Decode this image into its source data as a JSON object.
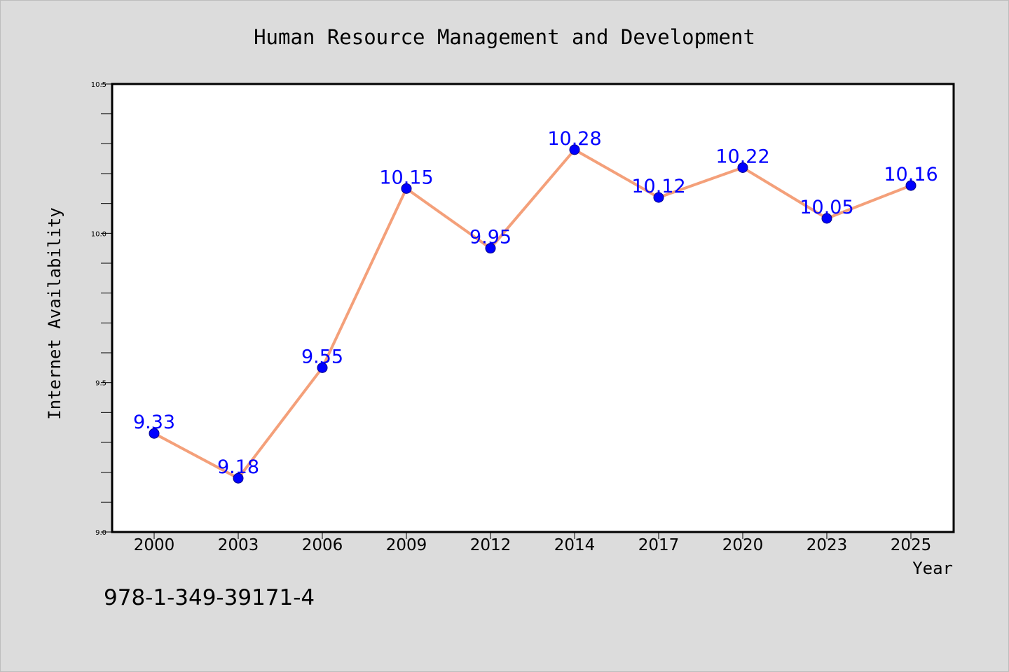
{
  "chart_data": {
    "type": "line",
    "title": "Human Resource Management and Development",
    "xlabel": "Year",
    "ylabel": "Internet Availability",
    "categories": [
      "2000",
      "2003",
      "2006",
      "2009",
      "2012",
      "2014",
      "2017",
      "2020",
      "2023",
      "2025"
    ],
    "series": [
      {
        "values": [
          9.33,
          9.18,
          9.55,
          10.15,
          9.95,
          10.28,
          10.12,
          10.22,
          10.05,
          10.16
        ],
        "labels": [
          "9.33",
          "9.18",
          "9.55",
          "10.15",
          "9.95",
          "10.28",
          "10.12",
          "10.22",
          "10.05",
          "10.16"
        ],
        "line_color": "#f4a07a",
        "marker_color": "#0000ff"
      }
    ],
    "ylim": [
      9.0,
      10.5
    ],
    "yticks": [
      "9.0",
      "9.5",
      "10.0",
      "10.5"
    ],
    "grid": false,
    "background_color": "#dcdcdc",
    "plot_background_color": "#ffffff"
  },
  "footer": {
    "isbn": "978-1-349-39171-4"
  }
}
